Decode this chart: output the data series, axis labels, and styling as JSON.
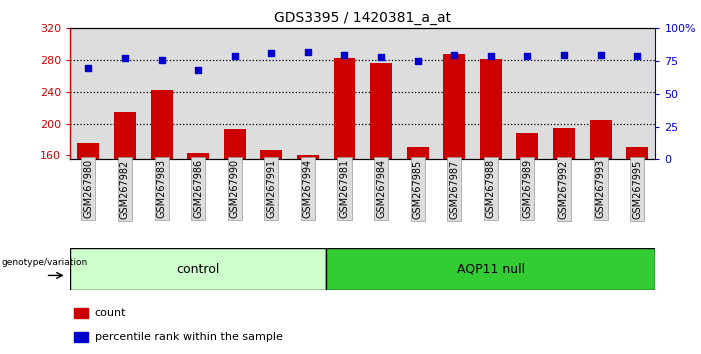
{
  "title": "GDS3395 / 1420381_a_at",
  "samples": [
    "GSM267980",
    "GSM267982",
    "GSM267983",
    "GSM267986",
    "GSM267990",
    "GSM267991",
    "GSM267994",
    "GSM267981",
    "GSM267984",
    "GSM267985",
    "GSM267987",
    "GSM267988",
    "GSM267989",
    "GSM267992",
    "GSM267993",
    "GSM267995"
  ],
  "counts": [
    175,
    215,
    242,
    163,
    193,
    167,
    161,
    283,
    276,
    171,
    288,
    281,
    188,
    195,
    205,
    170
  ],
  "percentiles": [
    70,
    77,
    76,
    68,
    79,
    81,
    82,
    80,
    78,
    75,
    80,
    79,
    79,
    80,
    80,
    79
  ],
  "n_control": 7,
  "n_aqp11": 9,
  "ylim_left": [
    155,
    320
  ],
  "ylim_right": [
    0,
    100
  ],
  "yticks_left": [
    160,
    200,
    240,
    280,
    320
  ],
  "yticks_right": [
    0,
    25,
    50,
    75,
    100
  ],
  "bar_color": "#cc0000",
  "dot_color": "#0000cc",
  "control_bg": "#ccffcc",
  "aqp11_bg": "#33cc33",
  "sample_bg": "#dddddd",
  "bar_width": 0.6,
  "base_value": 155,
  "dotgrid_vals": [
    200,
    240,
    280
  ],
  "right_ytick_labels": [
    "0",
    "25",
    "50",
    "75",
    "100%"
  ]
}
